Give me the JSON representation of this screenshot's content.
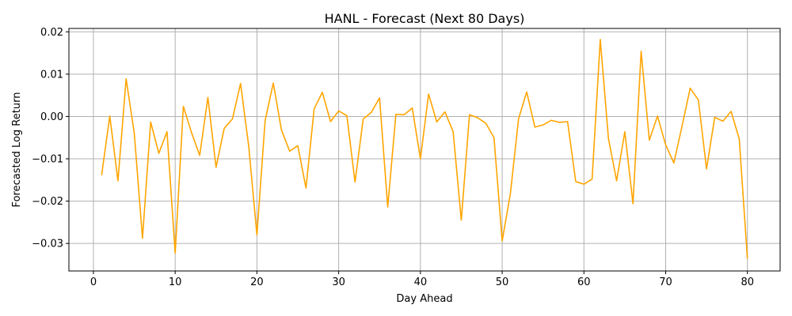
{
  "chart_data": {
    "type": "line",
    "title": "HANL - Forecast (Next 80 Days)",
    "xlabel": "Day Ahead",
    "ylabel": "Forecasted Log Return",
    "xlim": [
      -3,
      84
    ],
    "ylim": [
      -0.0365,
      0.0208
    ],
    "xticks": [
      0,
      10,
      20,
      30,
      40,
      50,
      60,
      70,
      80
    ],
    "xtick_labels": [
      "0",
      "10",
      "20",
      "30",
      "40",
      "50",
      "60",
      "70",
      "80"
    ],
    "yticks": [
      0.02,
      0.01,
      0.0,
      -0.01,
      -0.02,
      -0.03
    ],
    "ytick_labels": [
      "0.02",
      "0.01",
      "0.00",
      "−0.01",
      "−0.02",
      "−0.03"
    ],
    "grid": true,
    "series": [
      {
        "color": "#ffa500",
        "x": [
          1,
          2,
          3,
          4,
          5,
          6,
          7,
          8,
          9,
          10,
          11,
          12,
          13,
          14,
          15,
          16,
          17,
          18,
          19,
          20,
          21,
          22,
          23,
          24,
          25,
          26,
          27,
          28,
          29,
          30,
          31,
          32,
          33,
          34,
          35,
          36,
          37,
          38,
          39,
          40,
          41,
          42,
          43,
          44,
          45,
          46,
          47,
          48,
          49,
          50,
          51,
          52,
          53,
          54,
          55,
          56,
          57,
          58,
          59,
          60,
          61,
          62,
          63,
          64,
          65,
          66,
          67,
          68,
          69,
          70,
          71,
          72,
          73,
          74,
          75,
          76,
          77,
          78,
          79,
          80
        ],
        "values": [
          -0.0139,
          0.0001,
          -0.0152,
          0.0089,
          -0.004,
          -0.0288,
          -0.0013,
          -0.0087,
          -0.0036,
          -0.0323,
          0.0024,
          -0.0038,
          -0.0092,
          0.0045,
          -0.012,
          -0.0028,
          -0.0006,
          0.0078,
          -0.0071,
          -0.028,
          -0.001,
          0.0079,
          -0.0032,
          -0.0082,
          -0.0069,
          -0.0169,
          0.0018,
          0.0057,
          -0.0012,
          0.0013,
          0.0002,
          -0.0155,
          -0.0006,
          0.001,
          0.0044,
          -0.0214,
          0.0005,
          0.0004,
          0.002,
          -0.01,
          0.0053,
          -0.0013,
          0.0011,
          -0.0036,
          -0.0245,
          0.0004,
          -0.0003,
          -0.0016,
          -0.005,
          -0.0294,
          -0.0183,
          -0.0006,
          0.0058,
          -0.0025,
          -0.002,
          -0.0009,
          -0.0014,
          -0.0012,
          -0.0154,
          -0.016,
          -0.0148,
          0.0182,
          -0.0052,
          -0.0152,
          -0.0036,
          -0.0206,
          0.0154,
          -0.0056,
          0.0001,
          -0.0067,
          -0.011,
          -0.0023,
          0.0067,
          0.0039,
          -0.0124,
          -0.0002,
          -0.0011,
          0.0012,
          -0.0053,
          -0.0336
        ]
      }
    ]
  }
}
